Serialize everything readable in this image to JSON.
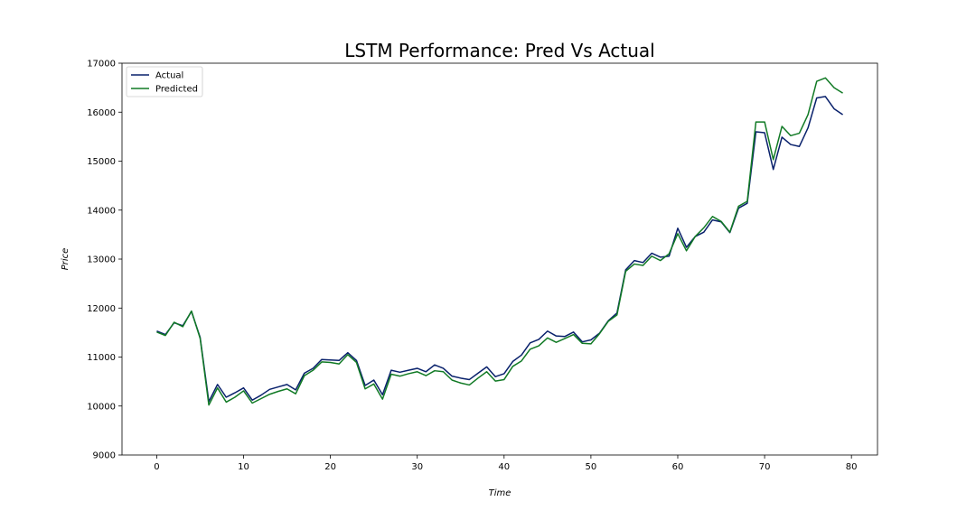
{
  "chart_data": {
    "type": "line",
    "title": "LSTM Performance: Pred Vs Actual",
    "xlabel": "Time",
    "ylabel": "Price",
    "xlim": [
      -4,
      83
    ],
    "ylim": [
      9000,
      17000
    ],
    "xticks": [
      0,
      10,
      20,
      30,
      40,
      50,
      60,
      70,
      80
    ],
    "yticks": [
      9000,
      10000,
      11000,
      12000,
      13000,
      14000,
      15000,
      16000,
      17000
    ],
    "xtick_labels": [
      "0",
      "10",
      "20",
      "30",
      "40",
      "50",
      "60",
      "70",
      "80"
    ],
    "ytick_labels": [
      "9000",
      "10000",
      "11000",
      "12000",
      "13000",
      "14000",
      "15000",
      "16000",
      "17000"
    ],
    "grid": false,
    "legend_position": "top-left",
    "x": [
      0,
      1,
      2,
      3,
      4,
      5,
      6,
      7,
      8,
      9,
      10,
      11,
      12,
      13,
      14,
      15,
      16,
      17,
      18,
      19,
      20,
      21,
      22,
      23,
      24,
      25,
      26,
      27,
      28,
      29,
      30,
      31,
      32,
      33,
      34,
      35,
      36,
      37,
      38,
      39,
      40,
      41,
      42,
      43,
      44,
      45,
      46,
      47,
      48,
      49,
      50,
      51,
      52,
      53,
      54,
      55,
      56,
      57,
      58,
      59,
      60,
      61,
      62,
      63,
      64,
      65,
      66,
      67,
      68,
      69,
      70,
      71,
      72,
      73,
      74,
      75,
      76,
      77,
      78,
      79
    ],
    "series": [
      {
        "name": "Actual",
        "color": "#08206b",
        "values": [
          11530,
          11460,
          11700,
          11640,
          11930,
          11400,
          10090,
          10440,
          10180,
          10270,
          10370,
          10120,
          10220,
          10340,
          10390,
          10440,
          10330,
          10670,
          10770,
          10950,
          10940,
          10930,
          11090,
          10930,
          10420,
          10530,
          10230,
          10730,
          10690,
          10730,
          10770,
          10700,
          10840,
          10770,
          10610,
          10570,
          10540,
          10670,
          10800,
          10600,
          10660,
          10910,
          11040,
          11290,
          11360,
          11530,
          11430,
          11420,
          11510,
          11310,
          11350,
          11490,
          11740,
          11900,
          12780,
          12970,
          12930,
          13120,
          13040,
          13060,
          13630,
          13240,
          13460,
          13550,
          13800,
          13760,
          13540,
          14040,
          14140,
          15600,
          15580,
          14830,
          15490,
          15340,
          15300,
          15680,
          16290,
          16320,
          16070,
          15950
        ]
      },
      {
        "name": "Predicted",
        "color": "#117a25",
        "values": [
          11510,
          11440,
          11710,
          11620,
          11940,
          11380,
          10020,
          10370,
          10080,
          10180,
          10310,
          10060,
          10150,
          10240,
          10300,
          10350,
          10250,
          10620,
          10730,
          10900,
          10890,
          10860,
          11050,
          10890,
          10350,
          10450,
          10140,
          10650,
          10610,
          10660,
          10700,
          10620,
          10720,
          10700,
          10530,
          10470,
          10430,
          10570,
          10700,
          10510,
          10540,
          10810,
          10920,
          11160,
          11230,
          11390,
          11300,
          11380,
          11460,
          11280,
          11270,
          11480,
          11730,
          11860,
          12750,
          12900,
          12870,
          13060,
          12970,
          13110,
          13520,
          13170,
          13460,
          13640,
          13870,
          13770,
          13550,
          14080,
          14180,
          15800,
          15800,
          15030,
          15710,
          15520,
          15570,
          15950,
          16630,
          16700,
          16500,
          16390
        ]
      }
    ]
  }
}
